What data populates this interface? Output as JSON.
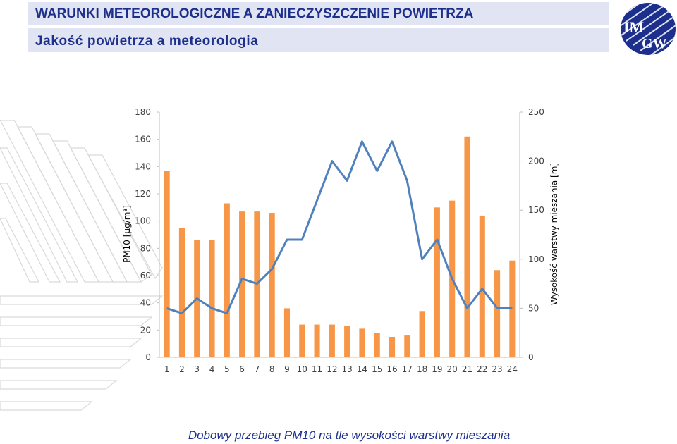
{
  "header": {
    "title": "WARUNKI METEOROLOGICZNE A ZANIECZYSZCZENIE POWIETRZA",
    "subtitle": "Jakość powietrza  a meteorologia"
  },
  "logo": {
    "text_top": "IM",
    "text_bottom": "GW",
    "icon": "imgw-logo"
  },
  "caption": "Dobowy przebieg PM10 na tle wysokości warstwy mieszania",
  "colors": {
    "bar": "#f79646",
    "line": "#4f81bd",
    "header_bg": "#e1e4f2",
    "header_text": "#1d2f8c"
  },
  "chart_data": {
    "type": "bar",
    "categories": [
      "1",
      "2",
      "3",
      "4",
      "5",
      "6",
      "7",
      "8",
      "9",
      "10",
      "11",
      "12",
      "13",
      "14",
      "15",
      "16",
      "17",
      "18",
      "19",
      "20",
      "21",
      "22",
      "23",
      "24"
    ],
    "series": [
      {
        "type": "bar",
        "axis": "left",
        "values": [
          137,
          95,
          86,
          86,
          113,
          107,
          107,
          106,
          36,
          24,
          24,
          24,
          23,
          21,
          18,
          15,
          16,
          34,
          110,
          115,
          162,
          104,
          64,
          71
        ]
      },
      {
        "type": "line",
        "axis": "right",
        "values": [
          50,
          45,
          60,
          50,
          45,
          80,
          75,
          90,
          120,
          120,
          160,
          200,
          180,
          220,
          190,
          220,
          180,
          100,
          120,
          80,
          50,
          70,
          50,
          50
        ]
      }
    ],
    "ylabel": "PM10 [µg/m³]",
    "y2label": "Wysokość warstwy mieszania [m]",
    "ylim": [
      0,
      180
    ],
    "yticks": [
      "0",
      "20",
      "40",
      "60",
      "80",
      "100",
      "120",
      "140",
      "160",
      "180"
    ],
    "y2lim": [
      0,
      250
    ],
    "y2ticks": [
      "0",
      "50",
      "100",
      "150",
      "200",
      "250"
    ],
    "grid": false
  }
}
